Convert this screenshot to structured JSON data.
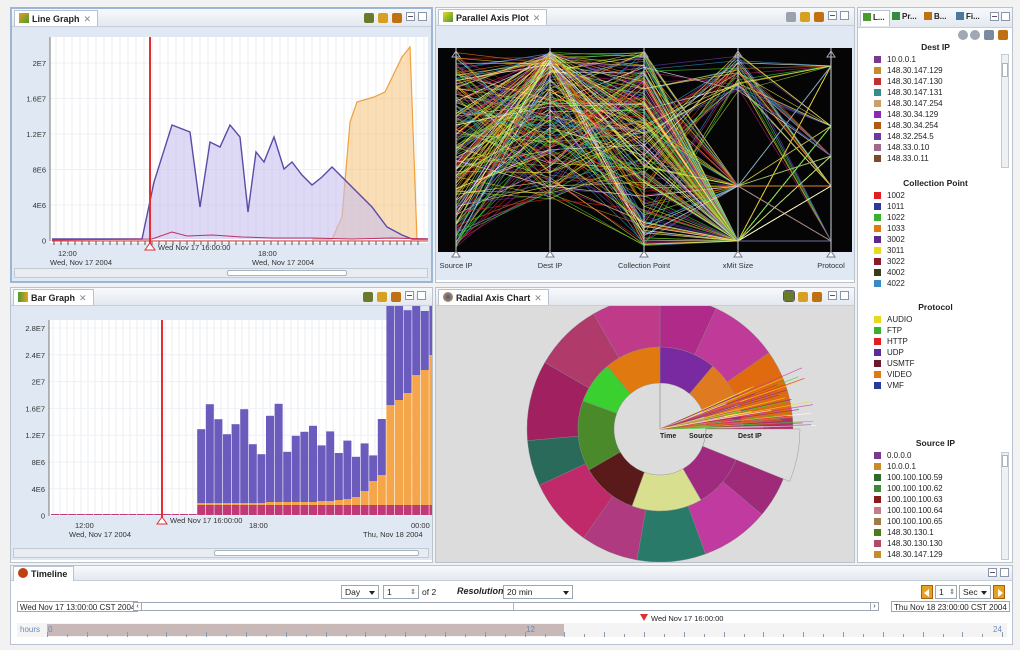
{
  "line_graph": {
    "tab_label": "Line Graph",
    "y_ticks": [
      "2E7",
      "1.6E7",
      "1.2E7",
      "8E6",
      "4E6",
      "0"
    ],
    "x_ticks": [
      {
        "time": "12:00",
        "date": "Wed, Nov 17 2004"
      },
      {
        "time": "18:00",
        "date": "Wed, Nov 17 2004"
      }
    ],
    "cursor_label": "Wed Nov 17 16:00:00"
  },
  "bar_graph": {
    "tab_label": "Bar Graph",
    "y_ticks": [
      "2.8E7",
      "2.4E7",
      "2E7",
      "1.6E7",
      "1.2E7",
      "8E6",
      "4E6",
      "0"
    ],
    "x_ticks": [
      {
        "time": "12:00",
        "date": "Wed, Nov 17 2004"
      },
      {
        "time": "18:00",
        "date": ""
      },
      {
        "time": "00:00",
        "date": "Thu, Nov 18 2004"
      }
    ],
    "cursor_label": "Wed Nov 17 16:00:00"
  },
  "parallel_plot": {
    "tab_label": "Parallel Axis Plot",
    "axes": [
      "Source IP",
      "Dest IP",
      "Collection Point",
      "xMit Size",
      "Protocol"
    ]
  },
  "radial_chart": {
    "tab_label": "Radial Axis Chart",
    "labels": [
      "Time",
      "Source",
      "Dest IP"
    ]
  },
  "legend_panel": {
    "tabs": [
      "L...",
      "Pr...",
      "B...",
      "Fi..."
    ],
    "sections": [
      {
        "title": "Dest IP",
        "items": [
          {
            "label": "10.0.0.1",
            "color": "#7a3a8c"
          },
          {
            "label": "148.30.147.129",
            "color": "#c88a2a"
          },
          {
            "label": "148.30.147.130",
            "color": "#c03030"
          },
          {
            "label": "148.30.147.131",
            "color": "#3a8a8a"
          },
          {
            "label": "148.30.147.254",
            "color": "#c8a070"
          },
          {
            "label": "148.30.34.129",
            "color": "#8a2ab0"
          },
          {
            "label": "148.30.34.254",
            "color": "#b05a10"
          },
          {
            "label": "148.32.254.5",
            "color": "#6a3aa0"
          },
          {
            "label": "148.33.0.10",
            "color": "#a06a8a"
          },
          {
            "label": "148.33.0.11",
            "color": "#7a4a2a"
          }
        ]
      },
      {
        "title": "Collection Point",
        "items": [
          {
            "label": "1002",
            "color": "#e02020"
          },
          {
            "label": "1011",
            "color": "#2a3a9a"
          },
          {
            "label": "1022",
            "color": "#3ab030"
          },
          {
            "label": "1033",
            "color": "#e07a10"
          },
          {
            "label": "3002",
            "color": "#5a2a8a"
          },
          {
            "label": "3011",
            "color": "#e8d820"
          },
          {
            "label": "3022",
            "color": "#8a1a2a"
          },
          {
            "label": "4002",
            "color": "#3a3a1a"
          },
          {
            "label": "4022",
            "color": "#3a8ac0"
          }
        ]
      },
      {
        "title": "Protocol",
        "items": [
          {
            "label": "AUDIO",
            "color": "#e8d820"
          },
          {
            "label": "FTP",
            "color": "#3ab030"
          },
          {
            "label": "HTTP",
            "color": "#e02020"
          },
          {
            "label": "UDP",
            "color": "#5a2a9a"
          },
          {
            "label": "USMTF",
            "color": "#6a1a2a"
          },
          {
            "label": "VIDEO",
            "color": "#e07a10"
          },
          {
            "label": "VMF",
            "color": "#2a3a9a"
          }
        ]
      },
      {
        "title": "Source IP",
        "items": [
          {
            "label": "0.0.0.0",
            "color": "#7a3a8c"
          },
          {
            "label": "10.0.0.1",
            "color": "#c88a2a"
          },
          {
            "label": "100.100.100.59",
            "color": "#2a6a2a"
          },
          {
            "label": "100.100.100.62",
            "color": "#3a8a3a"
          },
          {
            "label": "100.100.100.63",
            "color": "#8a1a1a"
          },
          {
            "label": "100.100.100.64",
            "color": "#c87a8a"
          },
          {
            "label": "100.100.100.65",
            "color": "#a07a4a"
          },
          {
            "label": "148.30.130.1",
            "color": "#4a7a1a"
          },
          {
            "label": "148.30.130.130",
            "color": "#b04a6a"
          },
          {
            "label": "148.30.147.129",
            "color": "#c88a2a"
          }
        ]
      }
    ]
  },
  "timeline": {
    "tab_label": "Timeline",
    "unit": "Day",
    "page": "1",
    "page_of": "of 2",
    "resolution_label": "Resolution",
    "resolution_value": "20 min",
    "step_value": "1",
    "step_unit": "Sec",
    "start_time": "Wed Nov 17 13:00:00 CST 2004",
    "end_time": "Thu Nov 18 23:00:00 CST 2004",
    "cursor_label": "Wed Nov 17 16:00:00",
    "hours_label": "hours",
    "hour_ticks": [
      "0",
      "12",
      "24"
    ]
  }
}
